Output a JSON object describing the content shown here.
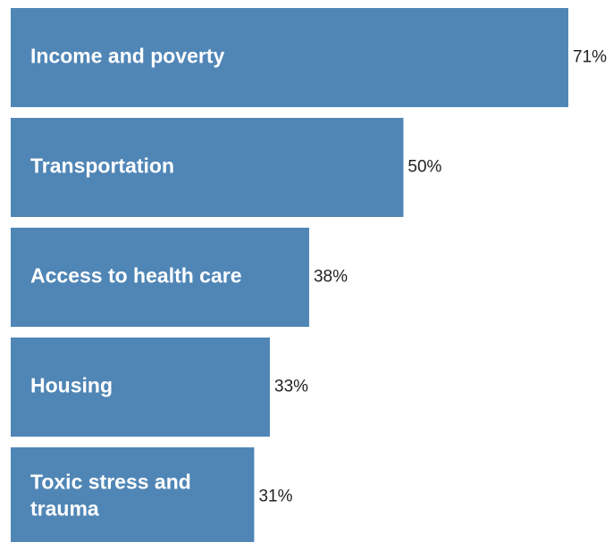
{
  "chart_data": {
    "type": "bar",
    "orientation": "horizontal",
    "categories": [
      "Income and poverty",
      "Transportation",
      "Access to health care",
      "Housing",
      "Toxic stress and trauma"
    ],
    "category_lines": [
      [
        "Income and poverty"
      ],
      [
        "Transportation"
      ],
      [
        "Access to health care"
      ],
      [
        "Housing"
      ],
      [
        "Toxic stress and",
        "trauma"
      ]
    ],
    "values": [
      71,
      50,
      38,
      33,
      31
    ],
    "value_labels": [
      "71%",
      "50%",
      "38%",
      "33%",
      "31%"
    ],
    "unit": "%",
    "xlim": [
      0,
      71
    ],
    "grid": false,
    "legend": "none",
    "bar_color": "#5086b6",
    "label_color": "#ffffff",
    "value_label_color": "#222222"
  }
}
